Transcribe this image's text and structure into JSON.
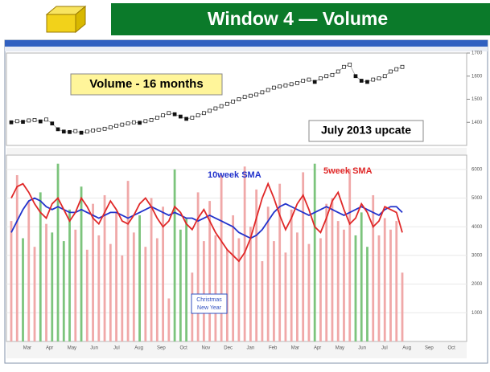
{
  "slide": {
    "title": "Window 4 — Volume"
  },
  "chart_data": [
    {
      "type": "line",
      "color": "#111111",
      "values": [
        1400,
        1405,
        1402,
        1408,
        1410,
        1404,
        1412,
        1395,
        1370,
        1360,
        1358,
        1362,
        1355,
        1360,
        1365,
        1368,
        1372,
        1378,
        1385,
        1390,
        1395,
        1400,
        1398,
        1405,
        1410,
        1420,
        1430,
        1440,
        1435,
        1425,
        1415,
        1420,
        1430,
        1440,
        1450,
        1460,
        1470,
        1480,
        1490,
        1500,
        1510,
        1515,
        1520,
        1530,
        1540,
        1550,
        1555,
        1560,
        1565,
        1570,
        1580,
        1585,
        1575,
        1590,
        1600,
        1605,
        1620,
        1640,
        1650,
        1600,
        1580,
        1575,
        1585,
        1590,
        1600,
        1620,
        1630,
        1640
      ],
      "ylim": [
        1300,
        1700
      ],
      "yticks": [
        1400,
        1500,
        1600,
        1700
      ],
      "annotations": [
        "Volume - 16 months",
        "July 2013 upcate"
      ]
    },
    {
      "type": "bar",
      "up_color": "#f0a8a8",
      "down_color": "#7cc47c",
      "values": [
        4200,
        5800,
        3600,
        4900,
        3300,
        5200,
        4100,
        3800,
        6200,
        3500,
        4600,
        3900,
        5400,
        3200,
        4800,
        3700,
        5100,
        3400,
        4500,
        3000,
        5600,
        3800,
        4400,
        3300,
        5000,
        3600,
        4700,
        1500,
        6000,
        3900,
        4300,
        2400,
        5200,
        3500,
        4900,
        3700,
        5800,
        3200,
        4400,
        3600,
        6100,
        4000,
        5300,
        2800,
        4700,
        3500,
        5500,
        3100,
        4600,
        3800,
        5900,
        3400,
        6200,
        3600,
        4800,
        5000,
        4200,
        3900,
        6000,
        3700,
        4500,
        3300,
        5100,
        3700,
        4300,
        3900,
        4200,
        2400
      ],
      "series": [
        {
          "name": "10week SMA",
          "color": "#2233cc",
          "values": [
            3800,
            4200,
            4600,
            4900,
            5000,
            4900,
            4700,
            4600,
            4700,
            4600,
            4500,
            4500,
            4600,
            4500,
            4400,
            4300,
            4400,
            4500,
            4500,
            4400,
            4300,
            4400,
            4500,
            4600,
            4700,
            4600,
            4500,
            4400,
            4500,
            4400,
            4300,
            4300,
            4200,
            4300,
            4400,
            4300,
            4200,
            4100,
            4000,
            3800,
            3700,
            3600,
            3700,
            3900,
            4200,
            4500,
            4700,
            4800,
            4700,
            4600,
            4500,
            4400,
            4500,
            4600,
            4700,
            4600,
            4500,
            4400,
            4500,
            4600,
            4700,
            4600,
            4500,
            4400,
            4600,
            4700,
            4700,
            4500
          ]
        },
        {
          "name": "5week SMA",
          "color": "#e02828",
          "values": [
            5000,
            5400,
            5500,
            5200,
            4800,
            4500,
            4300,
            4800,
            5000,
            4600,
            4200,
            4500,
            5000,
            4700,
            4300,
            4100,
            4500,
            4900,
            4600,
            4200,
            4100,
            4400,
            4800,
            5000,
            4700,
            4300,
            4000,
            4200,
            4700,
            4500,
            4100,
            3900,
            4300,
            4600,
            4200,
            3800,
            3500,
            3200,
            3000,
            2800,
            3100,
            3600,
            4300,
            5000,
            5500,
            5000,
            4400,
            3900,
            4300,
            4800,
            5100,
            4600,
            4000,
            3800,
            4300,
            4900,
            5200,
            4600,
            4100,
            4300,
            4800,
            4500,
            4000,
            4200,
            4700,
            4600,
            4500,
            3800
          ]
        }
      ],
      "ylim": [
        0,
        6500
      ],
      "yticks": [
        1000,
        2000,
        3000,
        4000,
        5000,
        6000
      ],
      "x_labels": [
        "Mar",
        "Apr",
        "May",
        "Jun",
        "Jul",
        "Aug",
        "Sep",
        "Oct",
        "Nov",
        "Dec",
        "Jan",
        "Feb",
        "Mar",
        "Apr",
        "May",
        "Jun",
        "Jul",
        "Aug",
        "Sep",
        "Oct"
      ],
      "annotations": [
        "Christmas",
        "New Year"
      ]
    }
  ]
}
